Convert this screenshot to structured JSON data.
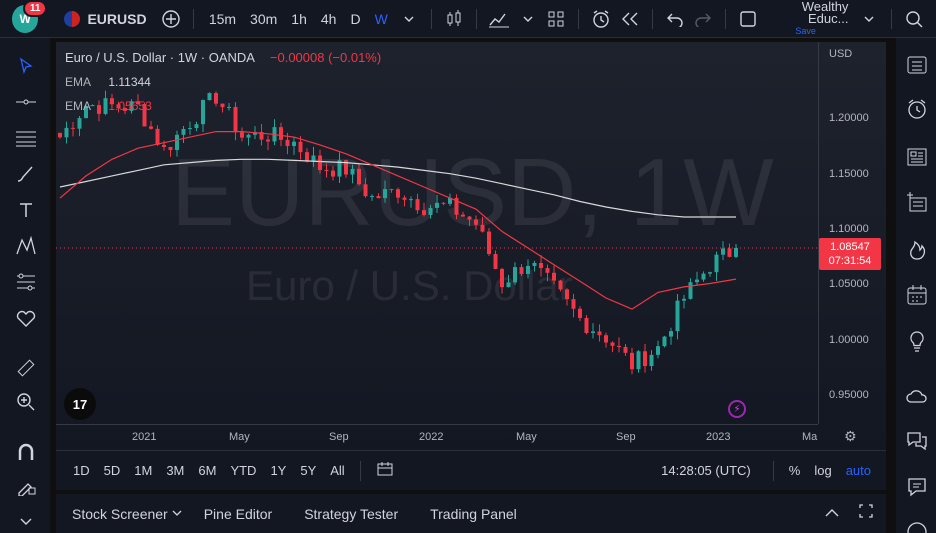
{
  "topbar": {
    "notification_count": "11",
    "avatar_text": "W",
    "symbol": "EURUSD",
    "intervals": [
      "15m",
      "30m",
      "1h",
      "4h",
      "D",
      "W"
    ],
    "active_interval": "W",
    "account_name": "Wealthy Educ...",
    "save_label": "Save"
  },
  "legend": {
    "title": "Euro / U.S. Dollar · 1W · OANDA",
    "change": "−0.00008 (−0.01%)",
    "ema1_label": "EMA",
    "ema1_value": "1.11344",
    "ema2_label": "EMA",
    "ema2_value": "1.05653"
  },
  "watermark": {
    "main": "EURUSD, 1W",
    "sub": "Euro / U.S. Dollar"
  },
  "price_axis": {
    "currency": "USD",
    "ticks": [
      "1.20000",
      "1.15000",
      "1.10000",
      "1.05000",
      "1.00000",
      "0.95000"
    ],
    "current_price": "1.08547",
    "countdown": "07:31:54"
  },
  "time_axis": {
    "ticks": [
      "2021",
      "May",
      "Sep",
      "2022",
      "May",
      "Sep",
      "2023",
      "Ma"
    ]
  },
  "range_bar": {
    "ranges": [
      "1D",
      "5D",
      "1M",
      "3M",
      "6M",
      "YTD",
      "1Y",
      "5Y",
      "All"
    ],
    "clock": "14:28:05 (UTC)",
    "percent": "%",
    "log": "log",
    "auto": "auto"
  },
  "bottom_panel": {
    "tabs": [
      "Stock Screener",
      "Pine Editor",
      "Strategy Tester",
      "Trading Panel"
    ]
  },
  "colors": {
    "up": "#26a69a",
    "down": "#f23645",
    "ema_fast": "#d8d8d8",
    "ema_slow": "#f23645",
    "accent": "#2962ff"
  },
  "chart_data": {
    "type": "candlestick",
    "title": "Euro / U.S. Dollar · 1W · OANDA",
    "ylim": [
      0.93,
      1.25
    ],
    "x": [
      "2020-11",
      "2020-12",
      "2021-01",
      "2021-02",
      "2021-03",
      "2021-04",
      "2021-05",
      "2021-06",
      "2021-07",
      "2021-08",
      "2021-09",
      "2021-10",
      "2021-11",
      "2021-12",
      "2022-01",
      "2022-02",
      "2022-03",
      "2022-04",
      "2022-05",
      "2022-06",
      "2022-07",
      "2022-08",
      "2022-09",
      "2022-10",
      "2022-11",
      "2022-12",
      "2023-01"
    ],
    "close": [
      1.185,
      1.214,
      1.213,
      1.212,
      1.173,
      1.199,
      1.222,
      1.186,
      1.187,
      1.18,
      1.158,
      1.156,
      1.13,
      1.137,
      1.123,
      1.122,
      1.107,
      1.054,
      1.073,
      1.048,
      1.021,
      1.005,
      0.98,
      0.995,
      1.04,
      1.07,
      1.085
    ],
    "series": [
      {
        "name": "EMA",
        "values": [
          1.14,
          1.145,
          1.15,
          1.155,
          1.16,
          1.162,
          1.164,
          1.165,
          1.165,
          1.164,
          1.163,
          1.162,
          1.16,
          1.158,
          1.155,
          1.152,
          1.148,
          1.143,
          1.138,
          1.133,
          1.127,
          1.122,
          1.118,
          1.115,
          1.113,
          1.113,
          1.113
        ]
      },
      {
        "name": "EMA",
        "values": [
          1.13,
          1.15,
          1.165,
          1.175,
          1.18,
          1.185,
          1.19,
          1.19,
          1.188,
          1.185,
          1.178,
          1.17,
          1.16,
          1.15,
          1.14,
          1.13,
          1.12,
          1.1,
          1.085,
          1.07,
          1.055,
          1.04,
          1.03,
          1.045,
          1.05,
          1.053,
          1.057
        ]
      }
    ]
  }
}
